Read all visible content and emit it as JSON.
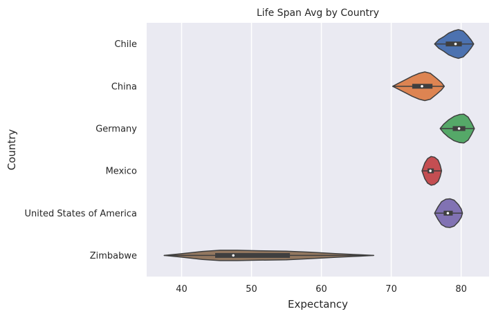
{
  "chart_data": {
    "type": "violin",
    "orientation": "horizontal",
    "title": "Life Span Avg by Country",
    "xlabel": "Expectancy",
    "ylabel": "Country",
    "xlim": [
      35,
      84
    ],
    "xticks": [
      40,
      50,
      60,
      70,
      80
    ],
    "grid": true,
    "series": [
      {
        "name": "Chile",
        "color": "#4c72b0",
        "min": 76.2,
        "max": 81.8,
        "q1": 77.8,
        "median": 79.2,
        "q3": 80.1,
        "profile": [
          [
            76.2,
            0
          ],
          [
            76.8,
            0.3
          ],
          [
            77.5,
            0.5
          ],
          [
            78.2,
            0.75
          ],
          [
            79.0,
            0.92
          ],
          [
            79.6,
            1.0
          ],
          [
            80.3,
            0.9
          ],
          [
            80.9,
            0.6
          ],
          [
            81.4,
            0.3
          ],
          [
            81.8,
            0
          ]
        ]
      },
      {
        "name": "China",
        "color": "#dd8452",
        "min": 70.2,
        "max": 77.6,
        "q1": 73.0,
        "median": 74.4,
        "q3": 75.9,
        "profile": [
          [
            70.2,
            0
          ],
          [
            71.0,
            0.2
          ],
          [
            72.0,
            0.45
          ],
          [
            73.0,
            0.7
          ],
          [
            74.0,
            0.9
          ],
          [
            74.8,
            1.0
          ],
          [
            75.6,
            0.9
          ],
          [
            76.5,
            0.55
          ],
          [
            77.2,
            0.25
          ],
          [
            77.6,
            0
          ]
        ]
      },
      {
        "name": "Germany",
        "color": "#55a868",
        "min": 77.0,
        "max": 81.9,
        "q1": 78.8,
        "median": 79.7,
        "q3": 80.6,
        "profile": [
          [
            77.0,
            0
          ],
          [
            77.5,
            0.3
          ],
          [
            78.2,
            0.6
          ],
          [
            79.0,
            0.85
          ],
          [
            79.8,
            0.98
          ],
          [
            80.4,
            1.0
          ],
          [
            81.0,
            0.8
          ],
          [
            81.5,
            0.4
          ],
          [
            81.9,
            0
          ]
        ]
      },
      {
        "name": "Mexico",
        "color": "#c44e52",
        "min": 74.4,
        "max": 77.2,
        "q1": 75.2,
        "median": 75.6,
        "q3": 76.1,
        "profile": [
          [
            74.4,
            0
          ],
          [
            74.8,
            0.55
          ],
          [
            75.2,
            0.85
          ],
          [
            75.7,
            1.0
          ],
          [
            76.2,
            0.95
          ],
          [
            76.7,
            0.75
          ],
          [
            77.0,
            0.4
          ],
          [
            77.2,
            0
          ]
        ]
      },
      {
        "name": "United States of America",
        "color": "#8172b3",
        "min": 76.2,
        "max": 80.2,
        "q1": 77.5,
        "median": 78.1,
        "q3": 78.8,
        "profile": [
          [
            76.2,
            0
          ],
          [
            76.7,
            0.45
          ],
          [
            77.2,
            0.8
          ],
          [
            77.8,
            0.97
          ],
          [
            78.4,
            1.0
          ],
          [
            79.0,
            0.9
          ],
          [
            79.6,
            0.6
          ],
          [
            80.0,
            0.3
          ],
          [
            80.2,
            0
          ]
        ]
      },
      {
        "name": "Zimbabwe",
        "color": "#937860",
        "min": 37.5,
        "max": 67.5,
        "q1": 44.8,
        "median": 47.4,
        "q3": 55.5,
        "profile": [
          [
            37.5,
            0
          ],
          [
            40.0,
            0.12
          ],
          [
            43.0,
            0.28
          ],
          [
            45.5,
            0.36
          ],
          [
            48.0,
            0.36
          ],
          [
            51.0,
            0.33
          ],
          [
            55.0,
            0.3
          ],
          [
            58.5,
            0.22
          ],
          [
            62.0,
            0.13
          ],
          [
            65.5,
            0.05
          ],
          [
            67.5,
            0
          ]
        ]
      }
    ]
  }
}
